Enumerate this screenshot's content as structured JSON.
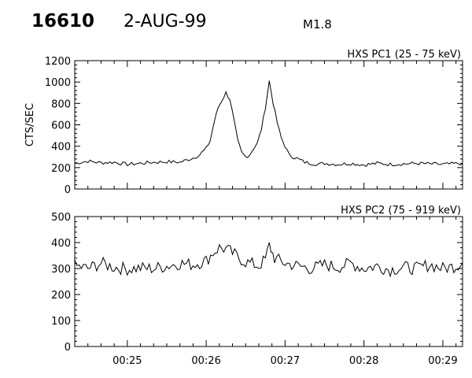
{
  "header": {
    "event_id": "16610",
    "date": "2-AUG-99",
    "flare_class": "M1.8"
  },
  "chart_data": [
    {
      "type": "line",
      "title": "HXS PC1 (25 - 75 keV)",
      "ylabel": "CTS/SEC",
      "xlabel": "",
      "ylim": [
        0,
        1200
      ],
      "yticks": [
        0,
        200,
        400,
        600,
        800,
        1000,
        1200
      ],
      "x_tick_labels": [
        "00:25",
        "00:26",
        "00:27",
        "00:28",
        "00:29"
      ],
      "x_range": [
        "00:24:20",
        "00:29:15"
      ],
      "series": [
        {
          "x": [
            "00:24:20",
            "00:24:30",
            "00:24:40",
            "00:24:50",
            "00:25:00",
            "00:25:10",
            "00:25:20",
            "00:25:30",
            "00:25:40",
            "00:25:45",
            "00:25:50",
            "00:25:55",
            "00:26:00",
            "00:26:03",
            "00:26:06",
            "00:26:09",
            "00:26:12",
            "00:26:15",
            "00:26:18",
            "00:26:21",
            "00:26:24",
            "00:26:27",
            "00:26:30",
            "00:26:33",
            "00:26:36",
            "00:26:39",
            "00:26:42",
            "00:26:45",
            "00:26:48",
            "00:26:51",
            "00:26:54",
            "00:26:57",
            "00:27:00",
            "00:27:03",
            "00:27:06",
            "00:27:10",
            "00:27:15",
            "00:27:20",
            "00:27:25",
            "00:27:30",
            "00:27:40",
            "00:27:50",
            "00:28:00",
            "00:28:10",
            "00:28:20",
            "00:28:30",
            "00:28:40",
            "00:28:50",
            "00:29:00",
            "00:29:15"
          ],
          "values": [
            240,
            260,
            245,
            250,
            230,
            240,
            250,
            255,
            250,
            270,
            290,
            320,
            380,
            450,
            620,
            760,
            830,
            900,
            840,
            650,
            450,
            340,
            300,
            320,
            380,
            430,
            560,
            760,
            1010,
            800,
            620,
            480,
            400,
            320,
            300,
            280,
            250,
            240,
            230,
            240,
            230,
            240,
            225,
            240,
            230,
            235,
            240,
            235,
            230,
            240
          ]
        }
      ]
    },
    {
      "type": "line",
      "title": "HXS PC2 (75 - 919 keV)",
      "ylabel": "",
      "xlabel": "",
      "ylim": [
        0,
        500
      ],
      "yticks": [
        0,
        100,
        200,
        300,
        400,
        500
      ],
      "x_tick_labels": [
        "00:25",
        "00:26",
        "00:27",
        "00:28",
        "00:29"
      ],
      "x_range": [
        "00:24:20",
        "00:29:15"
      ],
      "series": [
        {
          "x": [
            "00:24:20",
            "00:24:30",
            "00:24:40",
            "00:24:50",
            "00:25:00",
            "00:25:10",
            "00:25:20",
            "00:25:30",
            "00:25:40",
            "00:25:50",
            "00:26:00",
            "00:26:05",
            "00:26:10",
            "00:26:15",
            "00:26:20",
            "00:26:25",
            "00:26:30",
            "00:26:40",
            "00:26:45",
            "00:26:48",
            "00:26:52",
            "00:27:00",
            "00:27:10",
            "00:27:20",
            "00:27:30",
            "00:27:40",
            "00:27:50",
            "00:28:00",
            "00:28:10",
            "00:28:20",
            "00:28:30",
            "00:28:40",
            "00:28:50",
            "00:29:00",
            "00:29:10",
            "00:29:15"
          ],
          "values": [
            310,
            300,
            320,
            305,
            298,
            302,
            300,
            310,
            320,
            315,
            330,
            360,
            380,
            375,
            360,
            340,
            325,
            310,
            335,
            390,
            340,
            320,
            310,
            300,
            315,
            305,
            320,
            300,
            310,
            295,
            305,
            300,
            315,
            300,
            310,
            320
          ]
        }
      ]
    }
  ]
}
